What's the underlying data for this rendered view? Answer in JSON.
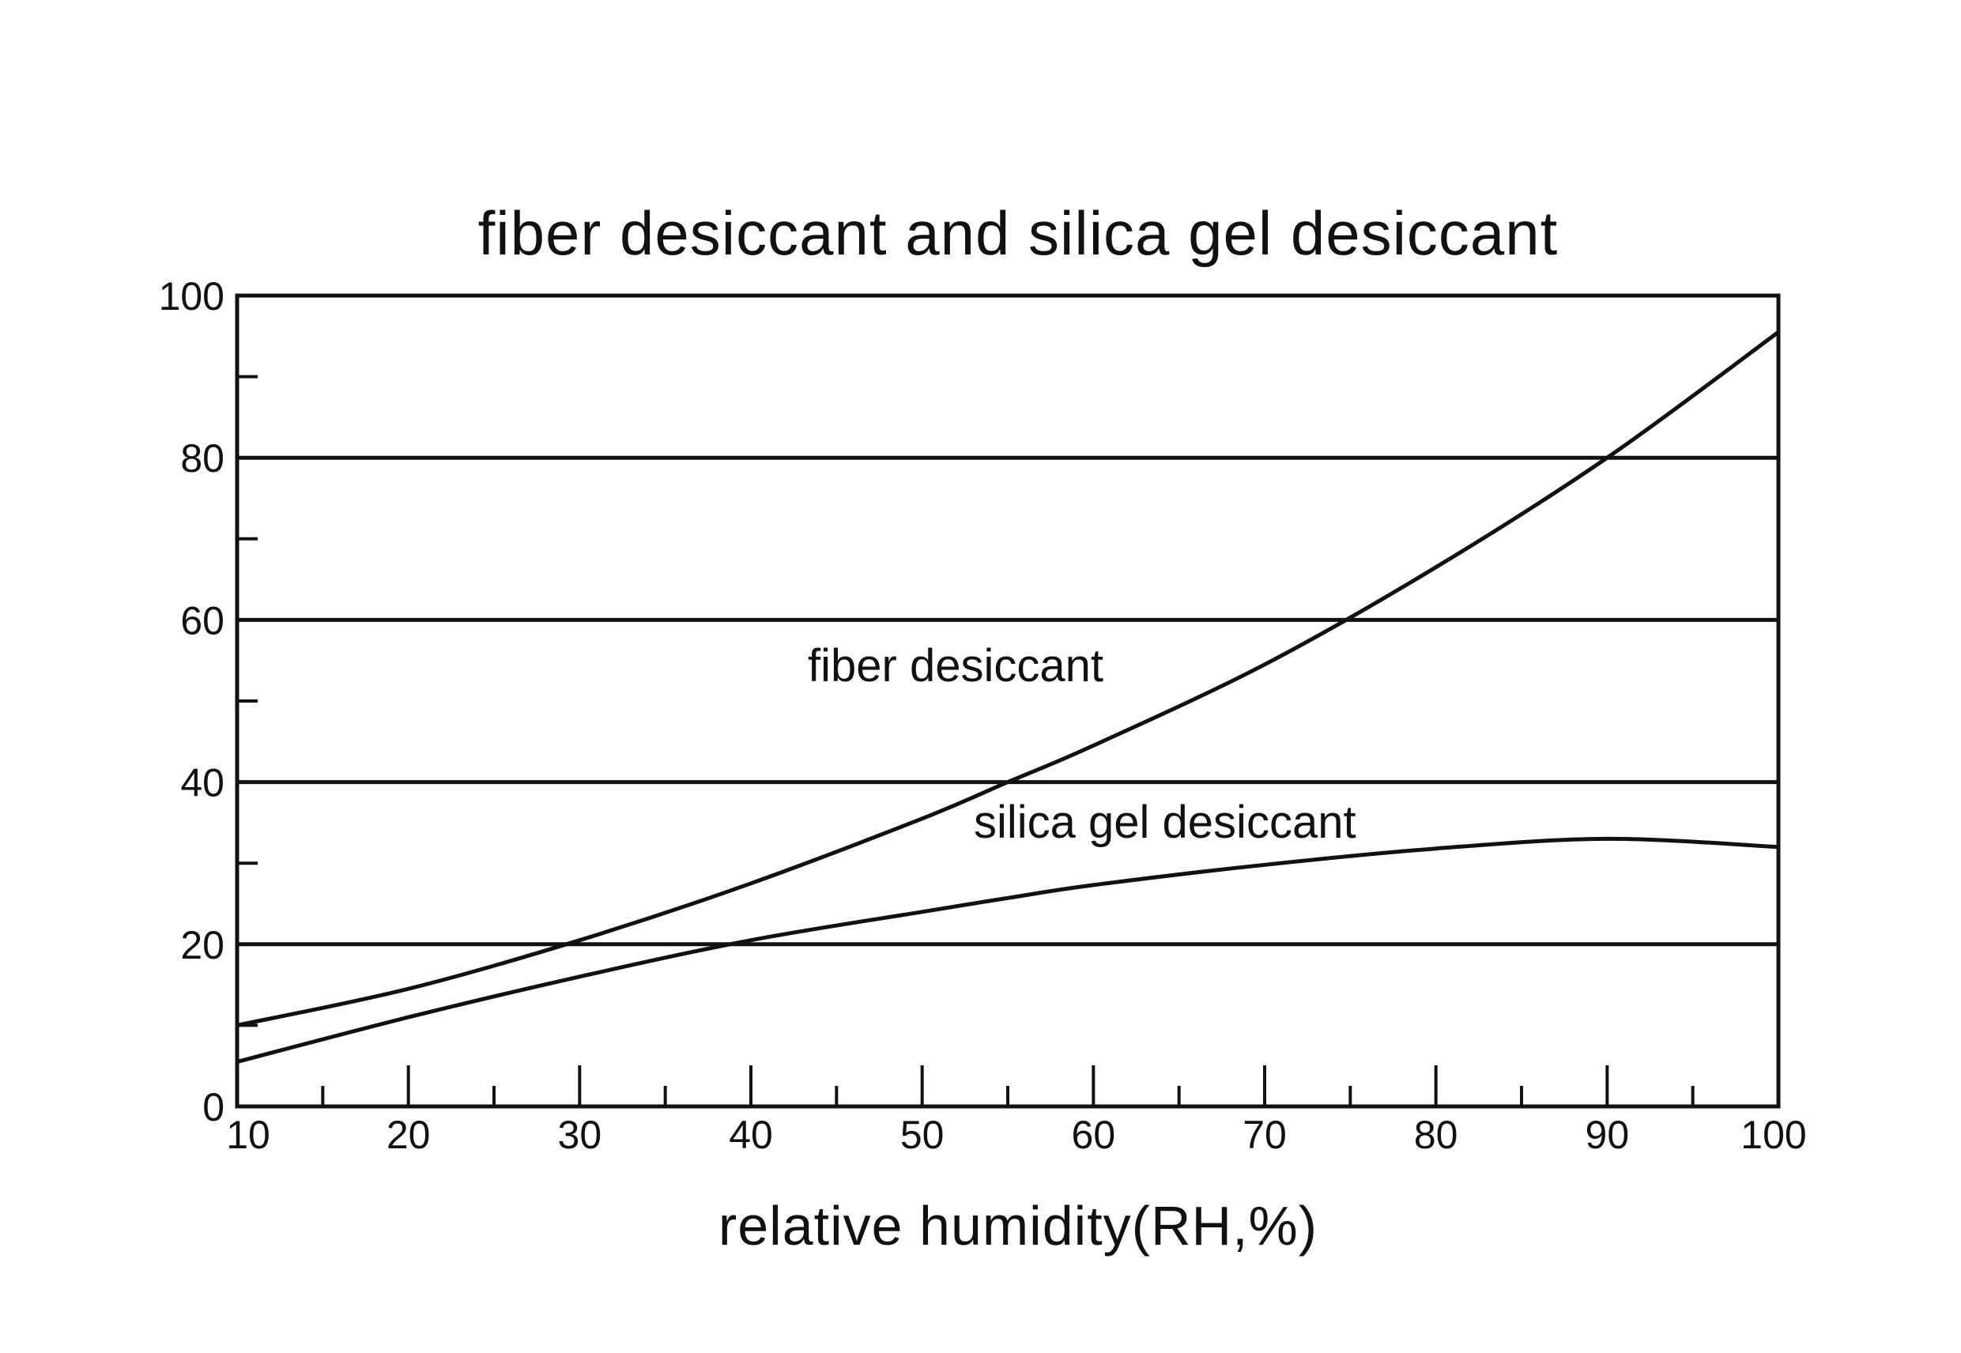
{
  "chart_data": {
    "type": "line",
    "title": "fiber desiccant and silica gel desiccant",
    "xlabel": "relative humidity(RH,%)",
    "ylabel": "",
    "xlim": [
      10,
      100
    ],
    "ylim": [
      0,
      100
    ],
    "x_ticks": [
      "10",
      "20",
      "30",
      "40",
      "50",
      "60",
      "70",
      "80",
      "90",
      "100"
    ],
    "y_ticks": [
      "0",
      "20",
      "40",
      "60",
      "80",
      "100"
    ],
    "grid": "horizontal at 20, 40, 60, 80",
    "line_color": "#111111",
    "x": [
      10,
      20,
      30,
      40,
      50,
      55,
      60,
      70,
      80,
      90,
      100
    ],
    "series": [
      {
        "name": "fiber desiccant",
        "values": [
          10,
          14.5,
          20.5,
          27.5,
          35.5,
          40,
          44.5,
          54.5,
          66.5,
          80,
          95.5
        ]
      },
      {
        "name": "silica gel desiccant",
        "values": [
          5.5,
          11,
          16,
          20.5,
          24,
          25.7,
          27.3,
          29.8,
          31.8,
          33,
          32
        ]
      }
    ]
  }
}
